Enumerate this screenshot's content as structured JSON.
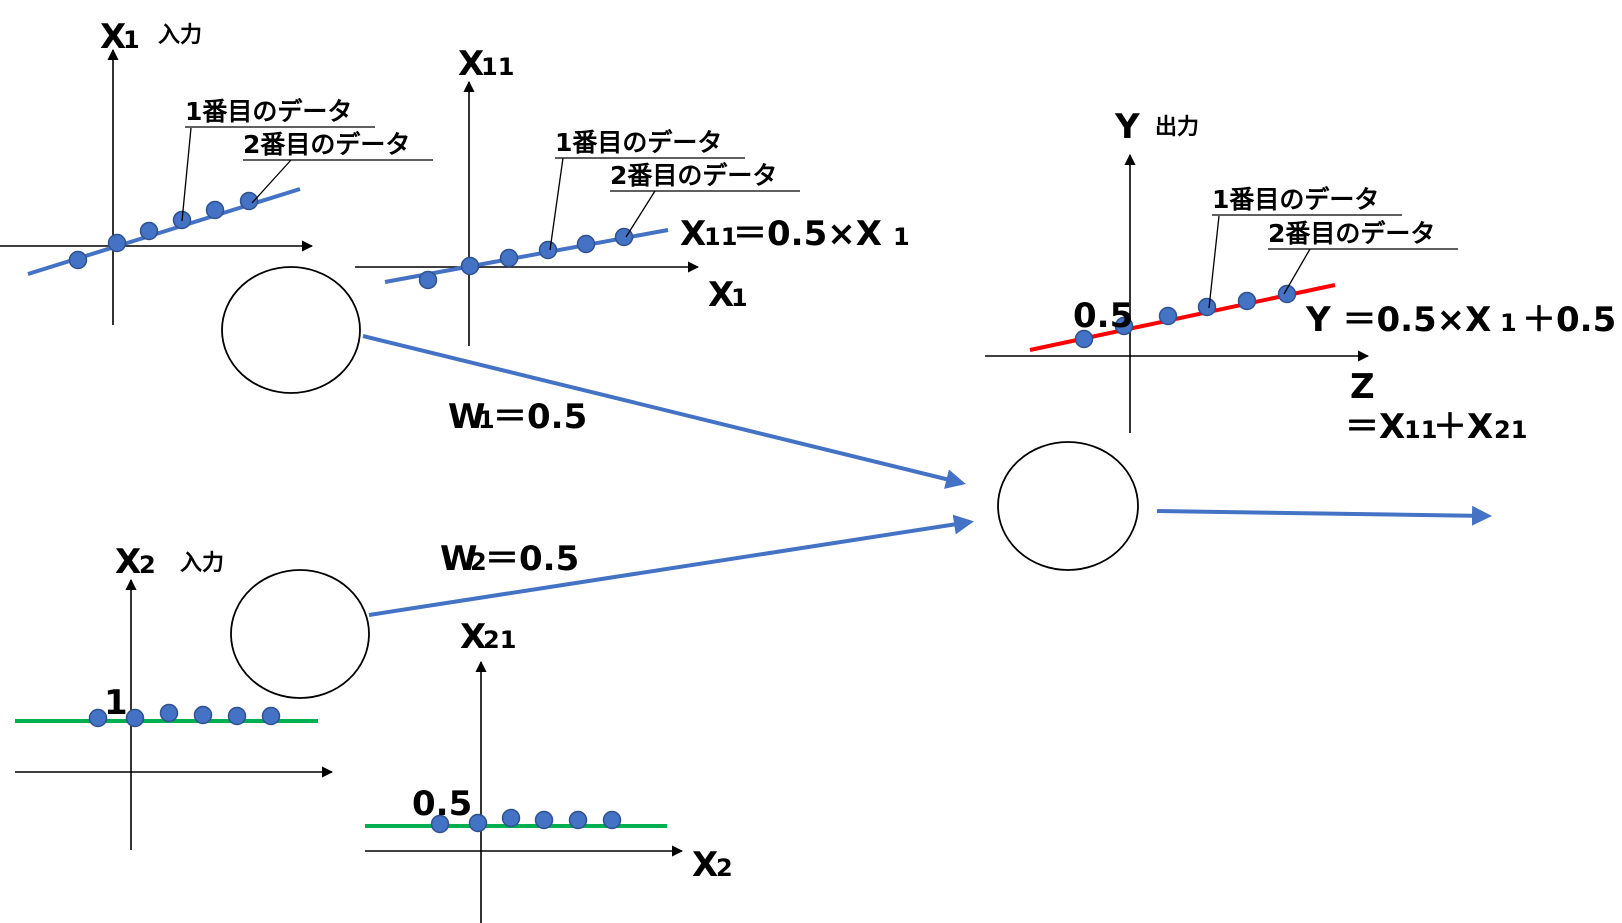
{
  "colors": {
    "blue_line": "#4472c4",
    "green_line": "#00b050",
    "red_line": "#ff0000",
    "dot_fill": "#4472c4"
  },
  "input_x1": {
    "axis_label": "X",
    "axis_sub": "1",
    "caption": "入力",
    "note1": "1番目のデータ",
    "note2": "2番目のデータ"
  },
  "hidden_x11": {
    "axis_label": "X",
    "axis_sub": "11",
    "note1": "1番目のデータ",
    "note2": "2番目のデータ",
    "formula_lhs": "X",
    "formula_lhs_sub": "11",
    "formula_rhs": "＝0.5×X",
    "formula_rhs_sub": "1",
    "x_axis_label": "X",
    "x_axis_sub": "1"
  },
  "input_x2": {
    "axis_label": "X",
    "axis_sub": "2",
    "caption": "入力",
    "level_label": "1"
  },
  "hidden_x21": {
    "axis_label": "X",
    "axis_sub": "21",
    "level_label": "0.5",
    "x_axis_label": "X",
    "x_axis_sub": "2"
  },
  "weights": {
    "w1_label": "W",
    "w1_sub": "1",
    "w1_value": "＝0.5",
    "w2_label": "W",
    "w2_sub": "2",
    "w2_value": "＝0.5"
  },
  "output_y": {
    "axis_label": "Y",
    "caption": "出力",
    "note1": "1番目のデータ",
    "note2": "2番目のデータ",
    "intercept_label": "0.5",
    "formula_a": "Y ＝0.5×X",
    "formula_a_sub": "1",
    "formula_b": " ＋0.5",
    "z_label": "Z",
    "z_formula_a": "＝X",
    "z_formula_a_sub": "11",
    "z_formula_b": "＋X",
    "z_formula_b_sub": "21"
  },
  "dots": {
    "x1_plot": 6,
    "x11_plot": 6,
    "x2_plot": 6,
    "x21_plot": 6,
    "y_plot": 6
  }
}
